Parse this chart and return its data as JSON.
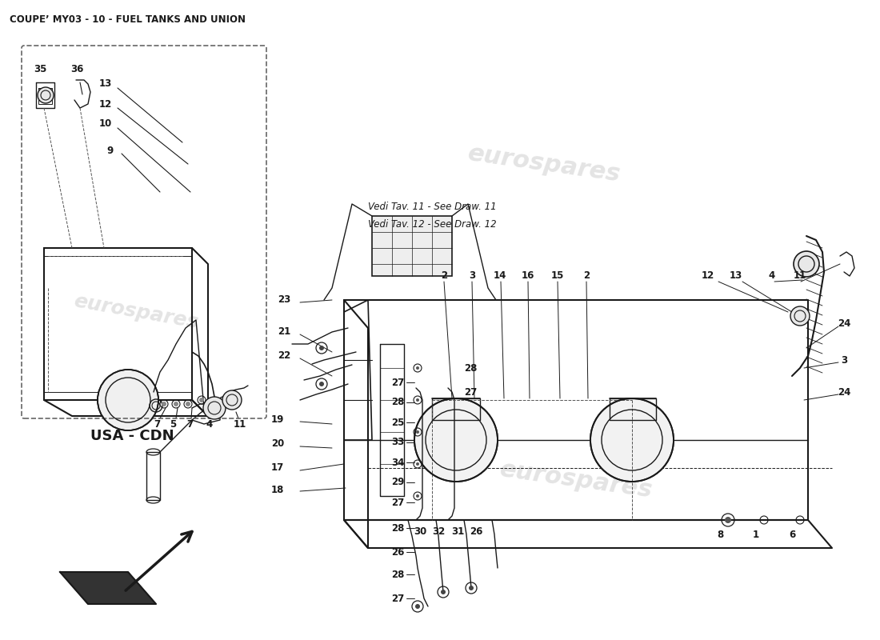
{
  "title": "COUPE’ MY03 - 10 - FUEL TANKS AND UNION",
  "title_fontsize": 8.5,
  "bg_color": "#ffffff",
  "lc": "#1a1a1a",
  "tc": "#1a1a1a",
  "wm_color": "#cccccc",
  "wm_alpha": 0.35,
  "note_lines": [
    "Vedi Tav. 11 - See Draw. 11",
    "Vedi Tav. 12 - See Draw. 12"
  ],
  "usa_cdn": "USA - CDN"
}
